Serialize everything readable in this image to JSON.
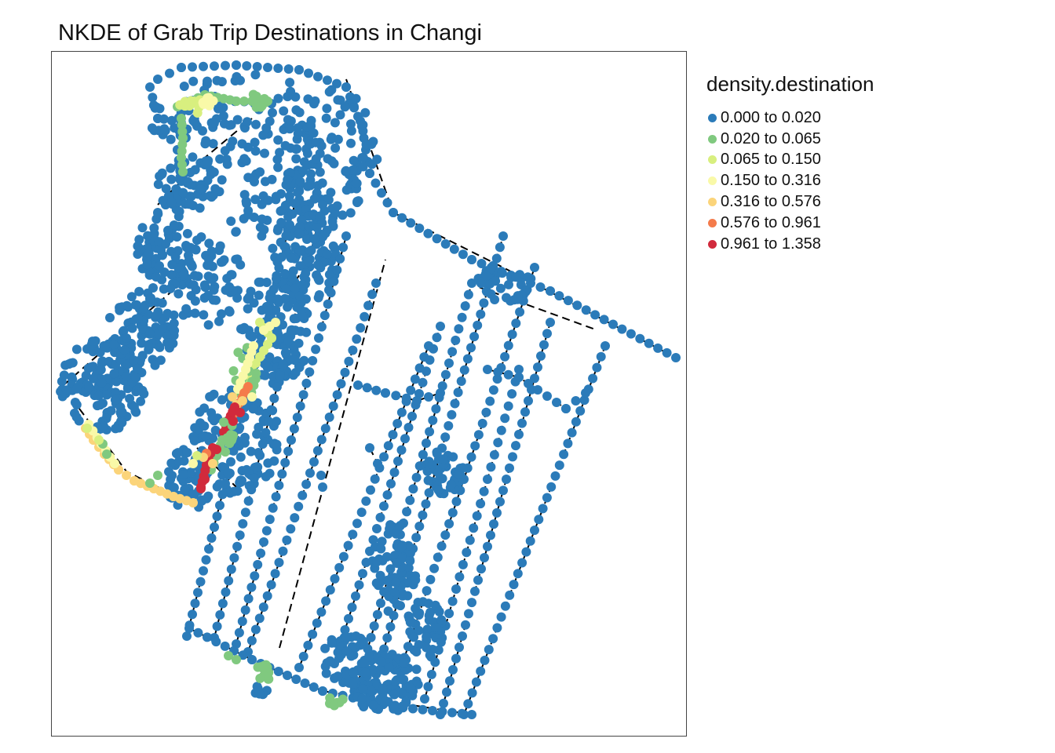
{
  "map": {
    "title": "NKDE of Grab Trip Destinations in Changi",
    "legend": {
      "title": "density.destination",
      "classes": [
        {
          "label": "0.000 to 0.020",
          "color": "#2b7bb9"
        },
        {
          "label": "0.020 to 0.065",
          "color": "#80c97f"
        },
        {
          "label": "0.065 to 0.150",
          "color": "#d8ef7f"
        },
        {
          "label": "0.150 to 0.316",
          "color": "#f9f9a8"
        },
        {
          "label": "0.316 to 0.576",
          "color": "#fbd47a"
        },
        {
          "label": "0.576 to 0.961",
          "color": "#f47b4b"
        },
        {
          "label": "0.961 to 1.358",
          "color": "#d12a3c"
        }
      ]
    },
    "road_color": "#000000"
  }
}
